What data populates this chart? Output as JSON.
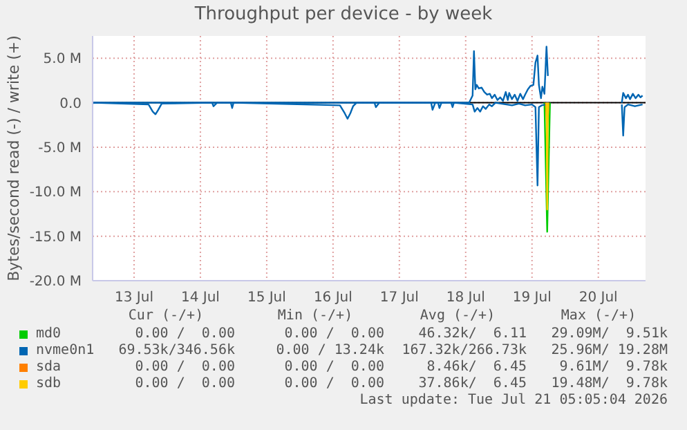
{
  "chart_data": {
    "type": "line",
    "title": "Throughput per device - by week",
    "ylabel": "Bytes/second read (-) / write (+)",
    "xlim": [
      "2026-07-12T21:00",
      "2026-07-21T05:05"
    ],
    "xticks": [
      {
        "value": "2026-07-13T12:00",
        "label": "13 Jul"
      },
      {
        "value": "2026-07-14T12:00",
        "label": "14 Jul"
      },
      {
        "value": "2026-07-15T12:00",
        "label": "15 Jul"
      },
      {
        "value": "2026-07-16T12:00",
        "label": "16 Jul"
      },
      {
        "value": "2026-07-17T12:00",
        "label": "17 Jul"
      },
      {
        "value": "2026-07-18T12:00",
        "label": "18 Jul"
      },
      {
        "value": "2026-07-19T12:00",
        "label": "19 Jul"
      },
      {
        "value": "2026-07-20T12:00",
        "label": "20 Jul"
      }
    ],
    "ylim": [
      -20,
      7.5
    ],
    "yticks": [
      {
        "value": -20,
        "label": "-20.0 M"
      },
      {
        "value": -15,
        "label": "-15.0 M"
      },
      {
        "value": -10,
        "label": "-10.0 M"
      },
      {
        "value": -5,
        "label": "-5.0 M"
      },
      {
        "value": 0,
        "label": "0.0"
      },
      {
        "value": 5,
        "label": "5.0 M"
      }
    ],
    "grid": true,
    "legend": "bottom",
    "marker": "none",
    "line_style": "solid",
    "ref_lines": [
      {
        "axis": "y",
        "value": 0,
        "color": "#000000"
      }
    ],
    "series": [
      {
        "name": "md0",
        "color": "#00cc00",
        "x": [
          "2026-07-19T16:30",
          "2026-07-19T17:30",
          "2026-07-19T18:30"
        ],
        "values": [
          0,
          -14.5,
          0
        ]
      },
      {
        "name": "nvme0n1",
        "color": "#0066b3",
        "x": [
          "2026-07-12T21:00",
          "2026-07-12T21:30",
          "2026-07-13T17:15",
          "2026-07-13T18:45",
          "2026-07-13T19:45",
          "2026-07-13T20:45",
          "2026-07-13T22:00",
          "2026-07-14T16:15",
          "2026-07-14T16:45",
          "2026-07-14T18:00",
          "2026-07-14T23:00",
          "2026-07-14T23:30",
          "2026-07-15T00:00",
          "2026-07-16T14:30",
          "2026-07-16T16:15",
          "2026-07-16T17:15",
          "2026-07-16T18:15",
          "2026-07-16T19:15",
          "2026-07-16T20:30",
          "2026-07-17T03:00",
          "2026-07-17T03:30",
          "2026-07-17T04:45",
          "2026-07-17T23:30",
          "2026-07-18T00:00",
          "2026-07-18T01:00",
          "2026-07-18T02:00",
          "2026-07-18T02:30",
          "2026-07-18T03:15",
          "2026-07-18T06:45",
          "2026-07-18T07:15",
          "2026-07-18T07:45",
          "2026-07-18T14:30",
          "2026-07-18T15:15",
          "2026-07-18T16:15",
          "2026-07-18T17:15",
          "2026-07-18T18:15",
          "2026-07-18T19:15",
          "2026-07-18T20:30",
          "2026-07-18T21:30",
          "2026-07-18T22:45",
          "2026-07-19T04:45",
          "2026-07-19T07:15",
          "2026-07-19T09:30",
          "2026-07-19T12:00",
          "2026-07-19T13:15",
          "2026-07-19T14:00",
          "2026-07-19T14:30",
          "2026-07-19T15:30",
          "2026-07-19T17:15",
          "2026-07-19T17:45",
          "2026-07-19T18:15",
          "2026-07-20T20:30",
          "2026-07-20T21:00",
          "2026-07-20T21:30",
          "2026-07-20T22:45",
          "2026-07-21T01:15",
          "2026-07-21T04:00"
        ],
        "values": [
          -0.1,
          0,
          -0.2,
          -1.0,
          -1.3,
          -0.8,
          -0.1,
          0,
          -0.4,
          0,
          0,
          -0.6,
          0,
          -0.3,
          -1.2,
          -1.8,
          -1.2,
          -0.4,
          0,
          0,
          -0.5,
          0,
          0,
          -0.8,
          0,
          0,
          -0.6,
          0,
          0,
          -0.5,
          0,
          -0.2,
          -1.0,
          -0.6,
          -1.0,
          -0.4,
          -0.7,
          -0.2,
          -0.4,
          0,
          -0.3,
          -0.1,
          -0.3,
          -0.2,
          -0.5,
          -9.3,
          -0.5,
          -0.3,
          -0.2,
          0,
          null,
          -0.2,
          -3.7,
          -0.5,
          -0.2,
          -0.4,
          -0.2
        ]
      },
      {
        "color": "#0066b3",
        "x": [
          "2026-07-12T21:00",
          "2026-07-18T13:15",
          "2026-07-18T14:30",
          "2026-07-18T15:00",
          "2026-07-18T15:30",
          "2026-07-18T16:00",
          "2026-07-18T16:45",
          "2026-07-18T17:45",
          "2026-07-18T18:45",
          "2026-07-18T19:45",
          "2026-07-18T20:45",
          "2026-07-18T21:30",
          "2026-07-18T22:30",
          "2026-07-18T23:30",
          "2026-07-19T00:30",
          "2026-07-19T01:30",
          "2026-07-19T02:30",
          "2026-07-19T03:15",
          "2026-07-19T03:45",
          "2026-07-19T04:45",
          "2026-07-19T05:45",
          "2026-07-19T06:45",
          "2026-07-19T07:45",
          "2026-07-19T08:45",
          "2026-07-19T09:30",
          "2026-07-19T10:30",
          "2026-07-19T11:30",
          "2026-07-19T12:30",
          "2026-07-19T13:15",
          "2026-07-19T14:00",
          "2026-07-19T14:30",
          "2026-07-19T15:15",
          "2026-07-19T15:45",
          "2026-07-19T16:30",
          "2026-07-19T17:15",
          "2026-07-19T17:45",
          "2026-07-19T18:15",
          "2026-07-20T20:30",
          "2026-07-20T21:00",
          "2026-07-20T22:00",
          "2026-07-20T22:45",
          "2026-07-20T23:30",
          "2026-07-21T00:30",
          "2026-07-21T01:30",
          "2026-07-21T02:30",
          "2026-07-21T03:15",
          "2026-07-21T04:00"
        ],
        "values": [
          0,
          0,
          0.8,
          5.8,
          1.5,
          2.0,
          1.6,
          1.7,
          1.2,
          0.9,
          1.0,
          0.5,
          0.9,
          0.3,
          0.6,
          0.2,
          1.2,
          0.3,
          1.1,
          0.4,
          0.9,
          0.2,
          1.0,
          0.4,
          0.9,
          1.5,
          1.9,
          2.0,
          4.5,
          5.3,
          2.0,
          0.5,
          1.8,
          1.0,
          6.3,
          3.0,
          null,
          0,
          1.1,
          0.5,
          0.9,
          0.4,
          1.0,
          0.5,
          0.9,
          0.6,
          0.8
        ]
      },
      {
        "name": "sda",
        "color": "#ff8000",
        "x": [
          "2026-07-19T17:00",
          "2026-07-19T17:30",
          "2026-07-19T18:00"
        ],
        "values": [
          0,
          -3,
          0
        ]
      },
      {
        "name": "sdb",
        "color": "#ffcc00",
        "x": [
          "2026-07-19T17:15",
          "2026-07-19T17:30",
          "2026-07-19T17:45"
        ],
        "values": [
          0,
          -12,
          0
        ]
      }
    ],
    "annotations": [
      "Cur (-/+)",
      "Min (-/+)",
      "Avg (-/+)",
      "Max (-/+)",
      "0.00 /  0.00",
      "0.00 /  0.00",
      "46.32k/  6.11",
      "29.09M/  9.51k",
      "69.53k/346.56k",
      "0.00 / 13.24k",
      "167.32k/266.73k",
      "25.96M/ 19.28M",
      "0.00 /  0.00",
      "0.00 /  0.00",
      "8.46k/  6.45",
      "9.61M/  9.78k",
      "0.00 /  0.00",
      "0.00 /  0.00",
      "37.86k/  6.45",
      "19.48M/  9.78k",
      "Last update: Tue Jul 21 05:05:04 2026"
    ]
  }
}
